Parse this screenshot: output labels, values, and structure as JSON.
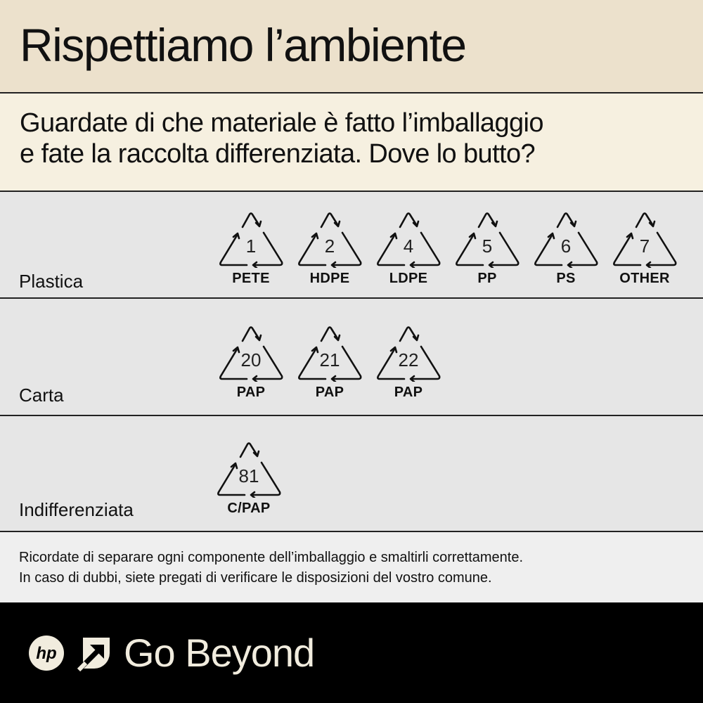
{
  "title": "Rispettiamo l’ambiente",
  "subtitle_line1": "Guardate di che materiale è fatto l’imballaggio",
  "subtitle_line2": "e fate la raccolta differenziata.  Dove lo butto?",
  "categories": [
    {
      "label": "Plastica",
      "symbols": [
        {
          "num": "1",
          "code": "PETE"
        },
        {
          "num": "2",
          "code": "HDPE"
        },
        {
          "num": "4",
          "code": "LDPE"
        },
        {
          "num": "5",
          "code": "PP"
        },
        {
          "num": "6",
          "code": "PS"
        },
        {
          "num": "7",
          "code": "OTHER"
        }
      ]
    },
    {
      "label": "Carta",
      "symbols": [
        {
          "num": "20",
          "code": "PAP"
        },
        {
          "num": "21",
          "code": "PAP"
        },
        {
          "num": "22",
          "code": "PAP"
        }
      ]
    },
    {
      "label": "Indifferenziata",
      "symbols": [
        {
          "num": "81",
          "code": "C/PAP"
        }
      ]
    }
  ],
  "note_line1": "Ricordate di separare ogni componente dell’imballaggio e smaltirli correttamente.",
  "note_line2": "In caso di dubbi, siete pregati di verificare le disposizioni del vostro comune.",
  "footer": {
    "logo": "hp",
    "tagline": "Go Beyond"
  },
  "colors": {
    "header": "#ece1cc",
    "subtitle": "#f6f0e0",
    "rows": "#e6e6e6",
    "footer": "#000000"
  }
}
